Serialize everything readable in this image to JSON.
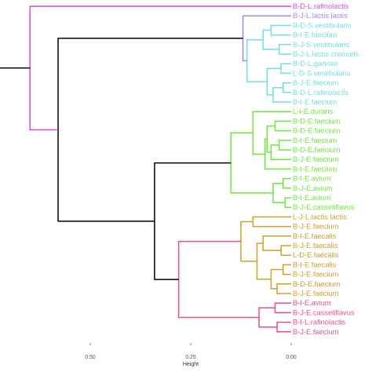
{
  "chart_data": {
    "type": "dendrogram",
    "orientation": "horizontal, root on left, leaves on right",
    "xlabel": "Height",
    "x_axis_reversed": true,
    "x_ticks": [
      "0.50",
      "0.25",
      "0.00"
    ],
    "x_tick_values": [
      0.5,
      0.25,
      0.0
    ],
    "colors": {
      "magenta": "#d24fd2",
      "purple": "#9a8fe6",
      "cyan": "#6fe0df",
      "green": "#6ee83c",
      "gold": "#cfa02a",
      "pink": "#e24f94",
      "root": "#000000"
    },
    "leaves": [
      {
        "label": "B-D-L.rafinolactis",
        "color": "magenta"
      },
      {
        "label": "B-J-L.lactis lactis",
        "color": "purple"
      },
      {
        "label": "B-D-S.vestibularis",
        "color": "cyan"
      },
      {
        "label": "B-I-E.faecium",
        "color": "cyan"
      },
      {
        "label": "B-J-S.vestibularis",
        "color": "cyan"
      },
      {
        "label": "B-J-L.lactis cremoris",
        "color": "cyan"
      },
      {
        "label": "B-D-L.garviae",
        "color": "cyan"
      },
      {
        "label": "L-D-S.vestibularis",
        "color": "cyan"
      },
      {
        "label": "B-J-E.faecium",
        "color": "cyan"
      },
      {
        "label": "B-D-L.rafinolactis",
        "color": "cyan"
      },
      {
        "label": "B-I-E.faecium",
        "color": "cyan"
      },
      {
        "label": "L-I-E.durans",
        "color": "green"
      },
      {
        "label": "B-D-E.faecium",
        "color": "green"
      },
      {
        "label": "B-D-E.faecium",
        "color": "green"
      },
      {
        "label": "B-I-E.faecium",
        "color": "green"
      },
      {
        "label": "B-D-E.faecium",
        "color": "green"
      },
      {
        "label": "B-J-E.faecium",
        "color": "green"
      },
      {
        "label": "B-I-E.faecium",
        "color": "green"
      },
      {
        "label": "B-I-E.avium",
        "color": "green"
      },
      {
        "label": "B-J-E.avium",
        "color": "green"
      },
      {
        "label": "B-I-E.avium",
        "color": "green"
      },
      {
        "label": "B-J-E.casseliflavus",
        "color": "green"
      },
      {
        "label": "L-J-L.lactis lactis",
        "color": "gold"
      },
      {
        "label": "B-J-E.faecium",
        "color": "gold"
      },
      {
        "label": "B-I-E.faecalis",
        "color": "gold"
      },
      {
        "label": "B-J-E.faecalis",
        "color": "gold"
      },
      {
        "label": "L-D-E.faecalis",
        "color": "gold"
      },
      {
        "label": "B-I-E.faecalis",
        "color": "gold"
      },
      {
        "label": "B-J-E.faecium",
        "color": "gold"
      },
      {
        "label": "B-D-E.faecium",
        "color": "gold"
      },
      {
        "label": "B-J-E.faecium",
        "color": "gold"
      },
      {
        "label": "B-I-E.avium",
        "color": "pink"
      },
      {
        "label": "B-J-E.casseliflavus",
        "color": "pink"
      },
      {
        "label": "B-I-L.rafinolactis",
        "color": "pink"
      },
      {
        "label": "B-J-E.faecium",
        "color": "pink"
      }
    ],
    "merges": [
      {
        "children": [
          "L2",
          "L3"
        ],
        "height": 0.05,
        "color": "cyan"
      },
      {
        "children": [
          "L4",
          "L5"
        ],
        "height": 0.03,
        "color": "cyan"
      },
      {
        "children": [
          "L6",
          "L7"
        ],
        "height": 0.025,
        "color": "cyan"
      },
      {
        "children": [
          "L8",
          "L9"
        ],
        "height": 0.02,
        "color": "cyan"
      },
      {
        "children": [
          "N3",
          "L10"
        ],
        "height": 0.045,
        "color": "cyan"
      },
      {
        "children": [
          "N2",
          "N4"
        ],
        "height": 0.06,
        "color": "cyan"
      },
      {
        "children": [
          "N0",
          "N1"
        ],
        "height": 0.07,
        "color": "cyan"
      },
      {
        "children": [
          "N6",
          "N5"
        ],
        "height": 0.11,
        "color": "cyan"
      },
      {
        "children": [
          "L1",
          "N7"
        ],
        "height": 0.12,
        "color": "purple"
      },
      {
        "children": [
          "L12",
          "L13"
        ],
        "height": 0.04,
        "color": "green"
      },
      {
        "children": [
          "L14",
          "L15"
        ],
        "height": 0.03,
        "color": "green"
      },
      {
        "children": [
          "N10",
          "L16"
        ],
        "height": 0.05,
        "color": "green"
      },
      {
        "children": [
          "N9",
          "N11"
        ],
        "height": 0.06,
        "color": "green"
      },
      {
        "children": [
          "N12",
          "L17"
        ],
        "height": 0.065,
        "color": "green"
      },
      {
        "children": [
          "L11",
          "N13"
        ],
        "height": 0.095,
        "color": "green"
      },
      {
        "children": [
          "L18",
          "L19"
        ],
        "height": 0.02,
        "color": "green"
      },
      {
        "children": [
          "L20",
          "L21"
        ],
        "height": 0.015,
        "color": "green"
      },
      {
        "children": [
          "N15",
          "N16"
        ],
        "height": 0.045,
        "color": "green"
      },
      {
        "children": [
          "N14",
          "N17"
        ],
        "height": 0.15,
        "color": "green"
      },
      {
        "children": [
          "L22",
          "L23"
        ],
        "height": 0.095,
        "color": "gold"
      },
      {
        "children": [
          "L25",
          "L26"
        ],
        "height": 0.025,
        "color": "gold"
      },
      {
        "children": [
          "L24",
          "N20"
        ],
        "height": 0.07,
        "color": "gold"
      },
      {
        "children": [
          "L27",
          "L28"
        ],
        "height": 0.02,
        "color": "gold"
      },
      {
        "children": [
          "L29",
          "L30"
        ],
        "height": 0.035,
        "color": "gold"
      },
      {
        "children": [
          "N22",
          "N23"
        ],
        "height": 0.05,
        "color": "gold"
      },
      {
        "children": [
          "N21",
          "N24"
        ],
        "height": 0.085,
        "color": "gold"
      },
      {
        "children": [
          "N19",
          "N25"
        ],
        "height": 0.125,
        "color": "gold"
      },
      {
        "children": [
          "L31",
          "L32"
        ],
        "height": 0.04,
        "color": "pink"
      },
      {
        "children": [
          "L33",
          "L34"
        ],
        "height": 0.035,
        "color": "pink"
      },
      {
        "children": [
          "N27",
          "N28"
        ],
        "height": 0.08,
        "color": "pink"
      },
      {
        "children": [
          "N26",
          "N29"
        ],
        "height": 0.28,
        "color": "pink"
      },
      {
        "children": [
          "N18",
          "N30"
        ],
        "height": 0.34,
        "color": "root"
      },
      {
        "children": [
          "N8",
          "N31"
        ],
        "height": 0.58,
        "color": "root"
      },
      {
        "children": [
          "L0",
          "N32"
        ],
        "height": 0.65,
        "color": "magenta"
      }
    ]
  }
}
